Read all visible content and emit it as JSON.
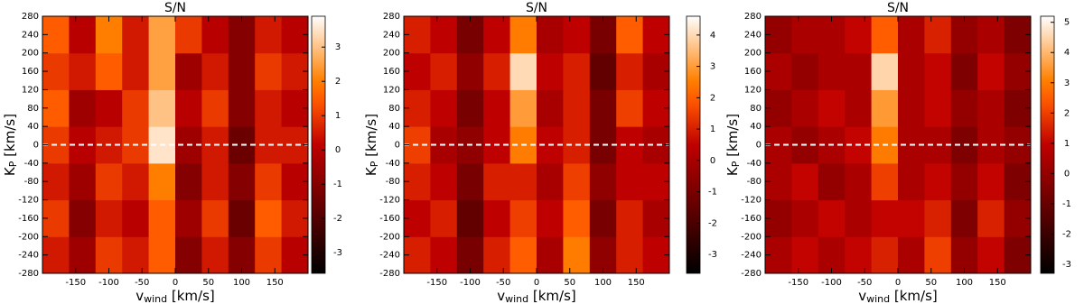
{
  "chart_data": [
    {
      "type": "heatmap",
      "title": "S/N",
      "xlabel": [
        "v",
        "wind",
        " [km/s]"
      ],
      "ylabel": [
        "K",
        "P",
        " [km/s]"
      ],
      "x": [
        -180,
        -140,
        -100,
        -60,
        -20,
        20,
        60,
        100,
        140,
        180
      ],
      "y": [
        -240,
        -160,
        -80,
        0,
        80,
        160,
        240
      ],
      "z": [
        [
          0.5,
          -0.5,
          1,
          0.5,
          1.5,
          -1,
          0.5,
          -1,
          1,
          0
        ],
        [
          1,
          -1,
          0.5,
          0,
          1.5,
          -0.5,
          1,
          -1.5,
          1.5,
          0.5
        ],
        [
          0.5,
          -0.5,
          1,
          0.5,
          2,
          -1,
          0.5,
          -1,
          1,
          0
        ],
        [
          1,
          0,
          0.5,
          1,
          3.5,
          -0.5,
          0.5,
          -1.5,
          0.5,
          0.5
        ],
        [
          1.5,
          -0.5,
          0,
          1,
          3,
          0,
          1,
          -1,
          0.5,
          0
        ],
        [
          1,
          0.5,
          1.5,
          0.5,
          2.5,
          -0.5,
          0.5,
          -1,
          1,
          0.5
        ],
        [
          1.5,
          0,
          2,
          0.5,
          2.5,
          1,
          0,
          -1,
          0.5,
          0
        ]
      ],
      "xlim": [
        -200,
        200
      ],
      "xticks": [
        -150,
        -100,
        -50,
        0,
        50,
        100,
        150
      ],
      "ylim": [
        -280,
        280
      ],
      "yticks": [
        -280,
        -240,
        -200,
        -160,
        -120,
        -80,
        -40,
        0,
        40,
        80,
        120,
        160,
        200,
        240,
        280
      ],
      "zlim": [
        -3.6,
        3.9
      ],
      "zticks": [
        -3,
        -2,
        -1,
        0,
        1,
        2,
        3
      ],
      "colormap": "gist_heat",
      "hline": 0
    },
    {
      "type": "heatmap",
      "title": "S/N",
      "xlabel": [
        "v",
        "wind",
        " [km/s]"
      ],
      "ylabel": [
        "K",
        "P",
        " [km/s]"
      ],
      "x": [
        -180,
        -140,
        -100,
        -60,
        -20,
        20,
        60,
        100,
        140,
        180
      ],
      "y": [
        -240,
        -160,
        -80,
        0,
        80,
        160,
        240
      ],
      "z": [
        [
          1,
          0.5,
          -1,
          1,
          2,
          0,
          2.5,
          -0.5,
          1,
          0.5
        ],
        [
          0.5,
          1,
          -1.5,
          0.5,
          1.5,
          0.5,
          2,
          -1,
          1,
          0
        ],
        [
          1,
          0.5,
          -1,
          1,
          1,
          0,
          1.5,
          -0.5,
          0.5,
          0.5
        ],
        [
          1.5,
          0,
          -0.5,
          0.5,
          2.5,
          0.5,
          1,
          -1,
          0.5,
          0
        ],
        [
          1,
          0.5,
          -1,
          0.5,
          3,
          0,
          1,
          -1,
          1.5,
          0.5
        ],
        [
          0.5,
          1,
          -0.5,
          1,
          4,
          0.5,
          1,
          -1.5,
          1,
          0
        ],
        [
          1,
          0.5,
          -1,
          0.5,
          2.5,
          0,
          0.5,
          -1,
          2,
          0.5
        ]
      ],
      "xlim": [
        -200,
        200
      ],
      "xticks": [
        -150,
        -100,
        -50,
        0,
        50,
        100,
        150
      ],
      "ylim": [
        -280,
        280
      ],
      "yticks": [
        -280,
        -240,
        -200,
        -160,
        -120,
        -80,
        -40,
        0,
        40,
        80,
        120,
        160,
        200,
        240,
        280
      ],
      "zlim": [
        -3.6,
        4.6
      ],
      "zticks": [
        -3,
        -2,
        -1,
        0,
        1,
        2,
        3,
        4
      ],
      "colormap": "gist_heat",
      "hline": 0
    },
    {
      "type": "heatmap",
      "title": "S/N",
      "xlabel": [
        "v",
        "wind",
        " [km/s]"
      ],
      "ylabel": [
        "K",
        "P",
        " [km/s]"
      ],
      "x": [
        -180,
        -140,
        -100,
        -60,
        -20,
        20,
        60,
        100,
        140,
        180
      ],
      "y": [
        -240,
        -160,
        -80,
        0,
        80,
        160,
        240
      ],
      "z": [
        [
          0.5,
          1,
          0.5,
          1,
          1.5,
          0.5,
          2,
          0,
          1,
          -0.5
        ],
        [
          0,
          0.5,
          1,
          0.5,
          1,
          1,
          1.5,
          -0.5,
          1.5,
          0
        ],
        [
          0.5,
          1,
          0,
          0.5,
          2,
          0.5,
          1,
          0,
          1,
          -0.5
        ],
        [
          0.5,
          0,
          0.5,
          1,
          3,
          0.5,
          0.5,
          -0.5,
          0.5,
          0
        ],
        [
          0,
          0.5,
          1,
          0.5,
          3.5,
          0.5,
          1,
          0,
          0.5,
          -0.5
        ],
        [
          0.5,
          0,
          0.5,
          0.5,
          4.5,
          0.5,
          1,
          -0.5,
          1,
          0
        ],
        [
          0,
          0.5,
          0.5,
          1,
          2.5,
          0.5,
          1.5,
          0,
          0.5,
          -0.5
        ]
      ],
      "xlim": [
        -200,
        200
      ],
      "xticks": [
        -150,
        -100,
        -50,
        0,
        50,
        100,
        150
      ],
      "ylim": [
        -280,
        280
      ],
      "yticks": [
        -280,
        -240,
        -200,
        -160,
        -120,
        -80,
        -40,
        0,
        40,
        80,
        120,
        160,
        200,
        240,
        280
      ],
      "zlim": [
        -3.3,
        5.2
      ],
      "zticks": [
        -3,
        -2,
        -1,
        0,
        1,
        2,
        3,
        4,
        5
      ],
      "colormap": "gist_heat",
      "hline": 0
    }
  ]
}
